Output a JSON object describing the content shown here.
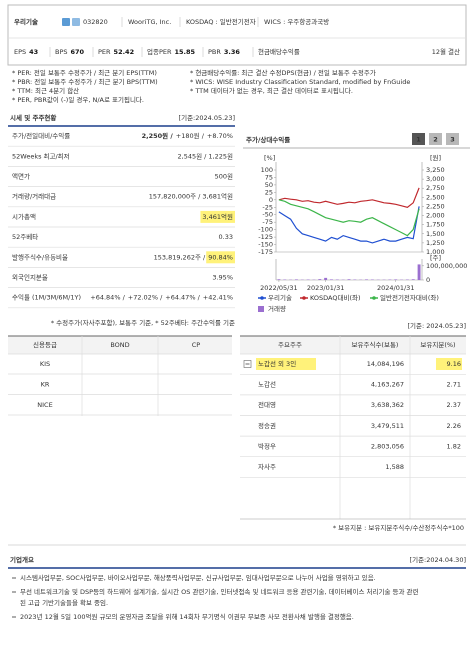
{
  "header": {
    "name": "우리기술",
    "code": "032820",
    "english_name": "WooriTG, Inc.",
    "market": "KOSDAQ : 일반전기전자",
    "wics": "WICS : 우주항공과국방",
    "metrics": [
      {
        "label": "EPS",
        "value": "43"
      },
      {
        "label": "BPS",
        "value": "670"
      },
      {
        "label": "PER",
        "value": "52.42"
      },
      {
        "label": "업종PER",
        "value": "15.85"
      },
      {
        "label": "PBR",
        "value": "3.36"
      },
      {
        "label": "현금배당수익률"
      }
    ],
    "fiscal": "12월 결산"
  },
  "notes_left": [
    "* PER: 전일 보통주 수정주가 / 최근 분기 EPS(TTM)",
    "* PBR: 전일 보통주 수정주가 / 최근 분기 BPS(TTM)",
    "* TTM: 최근 4분기 합산",
    "* PER, PBR값이 (-)일 경우, N/A로 표기됩니다."
  ],
  "notes_right": [
    "* 현금배당수익률: 최근 결산 수정DPS(현금) / 전일 보통주 수정주가",
    "* WICS: WISE Industry Classification Standard, modified by FnGuide",
    "* TTM 데이터가 없는 경우, 최근 결산 데이터로 표시됩니다."
  ],
  "market": {
    "title": "시세 및 주주현황",
    "date": "[기준:2024.05.23]",
    "rows": [
      {
        "label": "주가/전일대비/수익률",
        "value": [
          "2,250원 /",
          "+180원 /",
          "+8.70%"
        ]
      },
      {
        "label": "52Weeks 최고/최저",
        "value": [
          "2,545원 / 1,225원"
        ]
      },
      {
        "label": "액면가",
        "value": [
          "500원"
        ]
      },
      {
        "label": "거래량/거래대금",
        "value": [
          "157,820,000주 / 3,681억원"
        ]
      },
      {
        "label": "시가총액",
        "value": [
          "3,461억원"
        ],
        "highlight": true
      },
      {
        "label": "52주베타",
        "value": [
          "0.33"
        ]
      },
      {
        "label": "발행주식수/유동비율",
        "value": [
          "153,819,262주 /",
          "90.84%"
        ],
        "highlight": true
      },
      {
        "label": "외국인지분율",
        "value": [
          "3.95%"
        ]
      },
      {
        "label": "수익률 (1M/3M/6M/1Y)",
        "value": [
          "+64.84% /",
          "+72.02% /",
          "+64.47% /",
          "+42.41%"
        ]
      }
    ],
    "note": "* 수정주가(자사주포함), 보통주 기준, * 52주베타: 주간수익률 기준"
  },
  "buttons": [
    "1",
    "2",
    "3"
  ],
  "chart_data": {
    "type": "line",
    "title": "주가/상대수익률",
    "y_unit": "[%]",
    "y2_unit": "[원]",
    "y3_unit": "[주]",
    "categories": [
      "2022/05/31",
      null,
      null,
      null,
      null,
      null,
      null,
      null,
      "2023/01/31",
      null,
      null,
      null,
      null,
      null,
      null,
      null,
      null,
      null,
      null,
      null,
      "2024/01/31",
      null,
      null,
      null,
      null
    ],
    "ylim": [
      -175,
      100
    ],
    "yticks": [
      100,
      75,
      50,
      25,
      0,
      -25,
      -50,
      -75,
      -100,
      -125,
      -150,
      -175
    ],
    "y2lim": [
      1000,
      3250
    ],
    "y2ticks": [
      {
        "value": 3250,
        "label": "3,250"
      },
      {
        "value": 3000,
        "label": "3,000"
      },
      {
        "value": 2750,
        "label": "2,750"
      },
      {
        "value": 2500,
        "label": "2,500"
      },
      {
        "value": 2250,
        "label": "2,250"
      },
      {
        "value": 2000,
        "label": "2,000"
      },
      {
        "value": 1750,
        "label": "1,750"
      },
      {
        "value": 1500,
        "label": "1,500"
      },
      {
        "value": 1250,
        "label": "1,250"
      },
      {
        "value": 1000,
        "label": "1,000"
      }
    ],
    "y3lim": [
      0,
      120000000
    ],
    "y3ticks": [
      {
        "value": 100000000,
        "label": "100,000,000"
      },
      0
    ],
    "series": [
      {
        "name": "우리기술",
        "color": "#1f4fd1",
        "axis": "y2",
        "values": [
          2100,
          2000,
          1900,
          1650,
          1500,
          1450,
          1400,
          1350,
          1300,
          1400,
          1350,
          1450,
          1400,
          1350,
          1300,
          1300,
          1250,
          1300,
          1350,
          1300,
          1300,
          1350,
          1400,
          1365,
          2250
        ]
      },
      {
        "name": "KOSDAQ대비(좌)",
        "color": "#c0282d",
        "values": [
          0,
          5,
          2,
          0,
          -5,
          -3,
          -8,
          -10,
          -5,
          -10,
          -15,
          -12,
          -8,
          -10,
          -5,
          -3,
          0,
          -5,
          -10,
          -12,
          -15,
          -20,
          -25,
          -10,
          40
        ]
      },
      {
        "name": "일반전기전자대비(좌)",
        "color": "#3cb54a",
        "values": [
          0,
          -5,
          -15,
          -20,
          -25,
          -30,
          -40,
          -50,
          -60,
          -65,
          -70,
          -75,
          -70,
          -72,
          -75,
          -65,
          -60,
          -70,
          -80,
          -90,
          -100,
          -110,
          -120,
          -100,
          -30
        ]
      },
      {
        "name": "거래량",
        "color": "#9b6fd0",
        "type": "bar",
        "axis": "y3",
        "values": [
          5000000,
          3000000,
          2000000,
          4000000,
          2000000,
          3000000,
          2000000,
          6000000,
          15000000,
          4000000,
          3000000,
          2000000,
          5000000,
          3000000,
          2000000,
          4000000,
          3000000,
          2000000,
          2000000,
          3000000,
          4000000,
          2000000,
          3000000,
          5000000,
          110000000
        ]
      }
    ]
  },
  "credit": {
    "columns": [
      "신용등급",
      "BOND",
      "CP"
    ],
    "rows": [
      "KIS",
      "KR",
      "NICE"
    ]
  },
  "shareholders": {
    "date": "[기준: 2024.05.23]",
    "columns": [
      "주요주주",
      "보유주식수(보통)",
      "보유지분(%)"
    ],
    "rows": [
      [
        "노갑선 외 3인",
        "14,084,196",
        "9.16"
      ],
      [
        "노갑선",
        "4,163,267",
        "2.71"
      ],
      [
        "전대영",
        "3,638,362",
        "2.37"
      ],
      [
        "정승권",
        "3,479,511",
        "2.26"
      ],
      [
        "박정우",
        "2,803,056",
        "1.82"
      ],
      [
        "자사주",
        "1,588"
      ]
    ],
    "highlight_row": 0,
    "note": "* 보유지분 : 보유지분주식수/수산정주식수*100"
  },
  "overview": {
    "title": "기업개요",
    "date": "[기준:2024.04.30]",
    "bullets": [
      [
        "시스템사업부문, SOC사업부문, 바이오사업부문, 해상풍력사업부문, 신규사업부문, 임대사업부문으로 나누어 사업을 영위하고 있음."
      ],
      [
        "무선 네트워크기술 및 DSP등의 하드웨어 설계기술, 실시간 OS 관련기술, 인터넷접속 및 네트워크 응용 관련기술, 데이터베이스 처리기술 등과 관련",
        "된 고급 기반기술들을 확보 중임."
      ],
      [
        "2023년 12월 5일 100억원 규모의 운영자금 조달을 위해 14회차 무기명식 이권부 무보증 사모 전환사채 발행을 결정했음."
      ]
    ]
  }
}
